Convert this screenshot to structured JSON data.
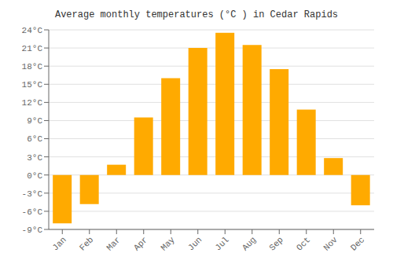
{
  "chart_data": {
    "type": "bar",
    "title": "Average monthly temperatures (°C ) in Cedar Rapids",
    "categories": [
      "Jan",
      "Feb",
      "Mar",
      "Apr",
      "May",
      "Jun",
      "Jul",
      "Aug",
      "Sep",
      "Oct",
      "Nov",
      "Dec"
    ],
    "values": [
      -8.0,
      -4.8,
      1.7,
      9.5,
      16.0,
      21.0,
      23.5,
      21.5,
      17.5,
      10.8,
      2.8,
      -5.0
    ],
    "color": "#FFAA00",
    "ylim": [
      -9,
      24
    ],
    "yticks": [
      {
        "value": -9,
        "label": "-9°C"
      },
      {
        "value": -6,
        "label": "-6°C"
      },
      {
        "value": -3,
        "label": "-3°C"
      },
      {
        "value": 0,
        "label": "0°C"
      },
      {
        "value": 3,
        "label": "3°C"
      },
      {
        "value": 6,
        "label": "6°C"
      },
      {
        "value": 9,
        "label": "9°C"
      },
      {
        "value": 12,
        "label": "12°C"
      },
      {
        "value": 15,
        "label": "15°C"
      },
      {
        "value": 18,
        "label": "18°C"
      },
      {
        "value": 21,
        "label": "21°C"
      },
      {
        "value": 24,
        "label": "24°C"
      }
    ],
    "grid": true
  }
}
